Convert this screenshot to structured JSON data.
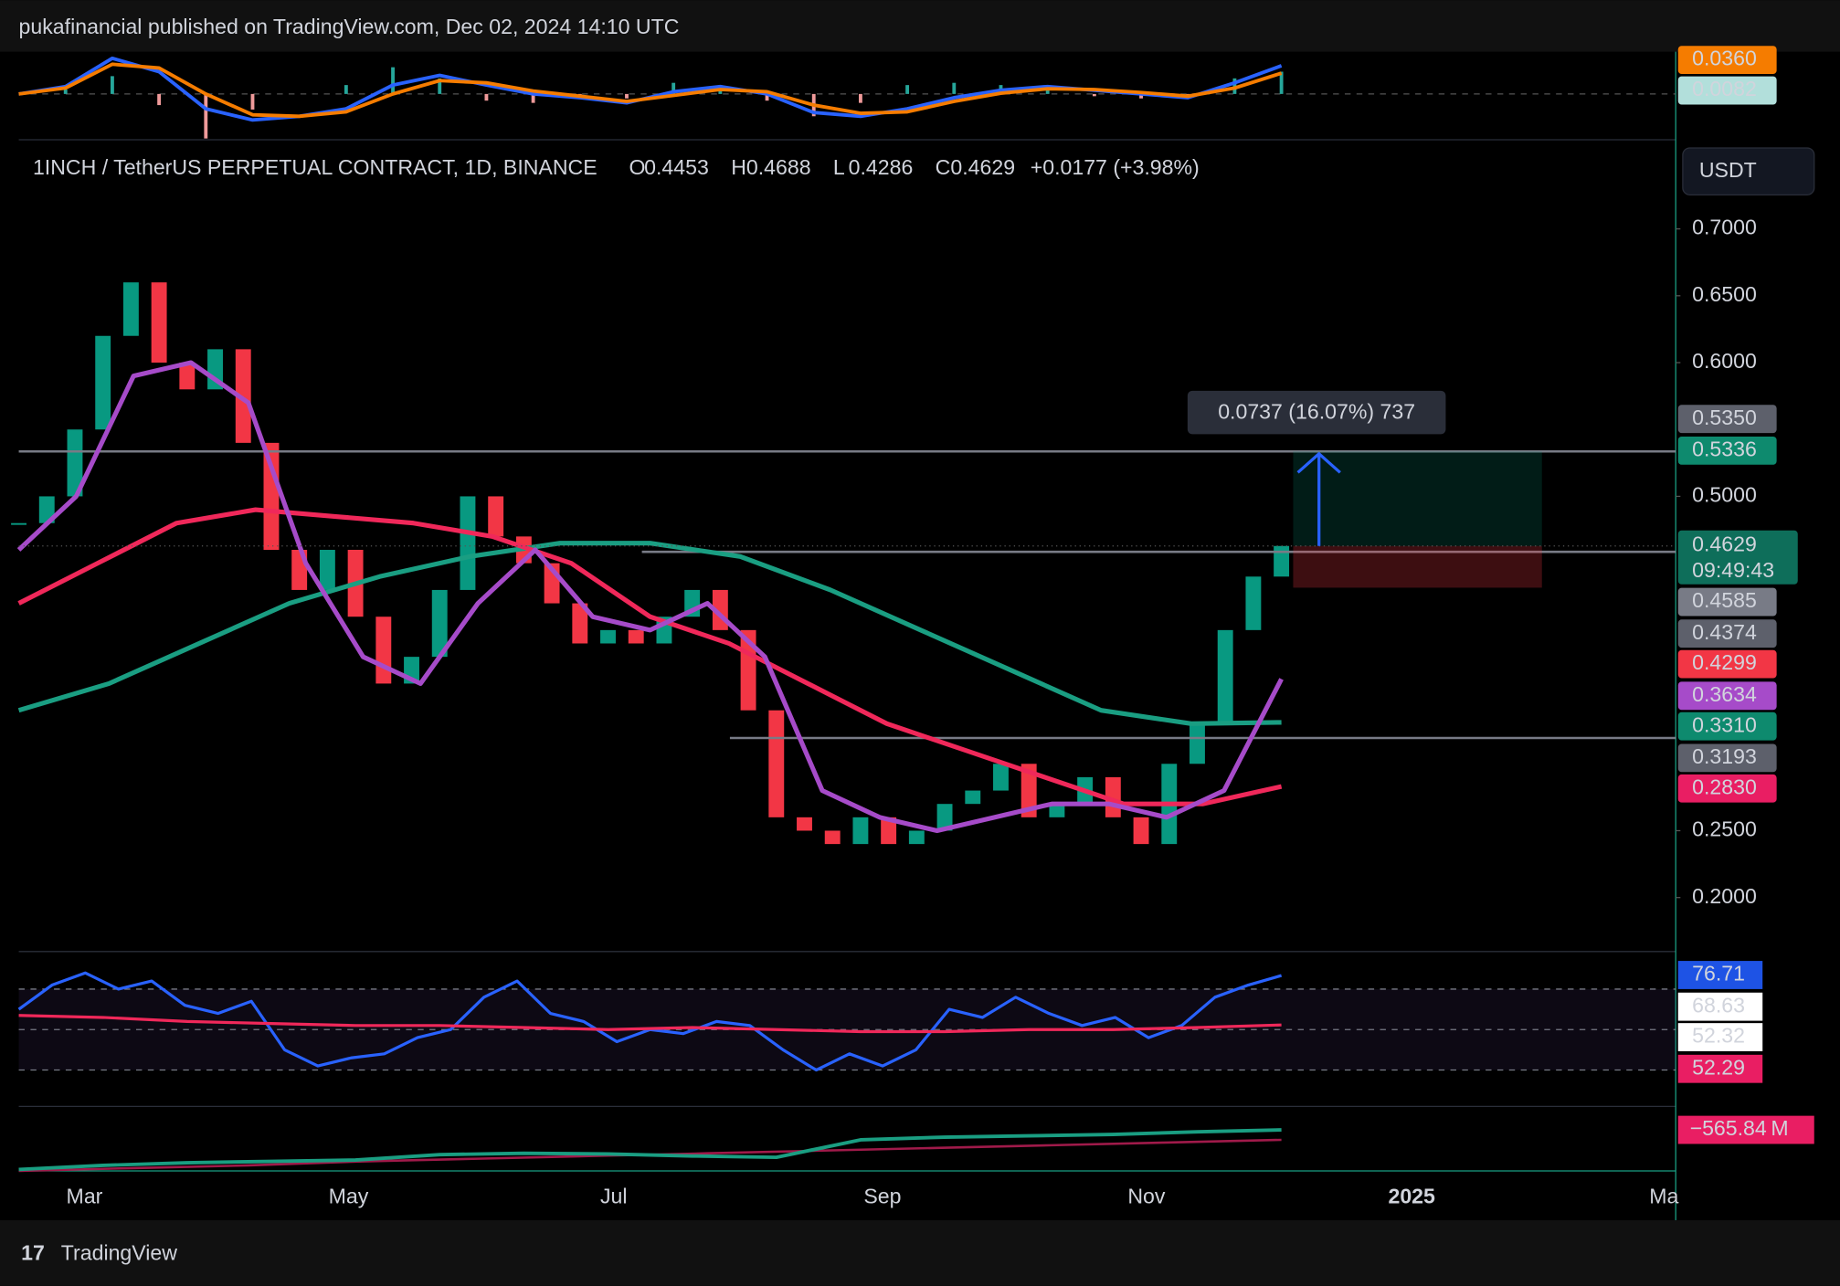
{
  "header": {
    "publisher": "pukafinancial published on TradingView.com, Dec 02, 2024 14:10 UTC"
  },
  "legend": {
    "symbol": "1INCH / TetherUS PERPETUAL CONTRACT, 1D, BINANCE",
    "open_key": "O",
    "open": "0.4453",
    "high_key": "H",
    "high": "0.4688",
    "low_key": "L",
    "low": "0.4286",
    "close_key": "C",
    "close": "0.4629",
    "change": "+0.0177 (+3.98%)"
  },
  "currency": "USDT",
  "price_pane": {
    "ylim": [
      0.1605,
      0.7658
    ],
    "yticks": [
      {
        "value": 0.7,
        "label": "0.7000"
      },
      {
        "value": 0.65,
        "label": "0.6500"
      },
      {
        "value": 0.6,
        "label": "0.6000"
      },
      {
        "value": 0.5,
        "label": "0.5000"
      },
      {
        "value": 0.25,
        "label": "0.2500"
      },
      {
        "value": 0.2,
        "label": "0.2000"
      }
    ],
    "close": [
      0.48,
      0.5,
      0.55,
      0.62,
      0.66,
      0.6,
      0.58,
      0.61,
      0.54,
      0.46,
      0.43,
      0.46,
      0.41,
      0.36,
      0.38,
      0.43,
      0.5,
      0.47,
      0.45,
      0.42,
      0.39,
      0.4,
      0.39,
      0.41,
      0.43,
      0.4,
      0.34,
      0.26,
      0.25,
      0.24,
      0.26,
      0.24,
      0.25,
      0.27,
      0.28,
      0.3,
      0.26,
      0.27,
      0.29,
      0.26,
      0.24,
      0.3,
      0.33,
      0.4,
      0.44,
      0.4629
    ],
    "ma_short": [
      0.46,
      0.5,
      0.59,
      0.6,
      0.57,
      0.45,
      0.38,
      0.36,
      0.42,
      0.46,
      0.41,
      0.4,
      0.42,
      0.38,
      0.28,
      0.26,
      0.25,
      0.26,
      0.27,
      0.27,
      0.26,
      0.28,
      0.3634
    ],
    "ma_mid": [
      0.42,
      0.45,
      0.48,
      0.49,
      0.485,
      0.48,
      0.47,
      0.45,
      0.41,
      0.39,
      0.36,
      0.33,
      0.31,
      0.29,
      0.27,
      0.27,
      0.283
    ],
    "ma_long": [
      0.34,
      0.36,
      0.39,
      0.42,
      0.44,
      0.455,
      0.465,
      0.465,
      0.455,
      0.43,
      0.4,
      0.37,
      0.34,
      0.33,
      0.331
    ],
    "levels": [
      0.5336,
      0.4585,
      0.3193
    ],
    "position": {
      "target": 0.5336,
      "entry": 0.4629,
      "stop": 0.4317,
      "label": "0.0737 (16.07%) 737"
    },
    "badges": [
      {
        "label": "0.5350",
        "bg": "#5d606b",
        "fg": "#ffffff"
      },
      {
        "label": "0.5336",
        "bg": "#0e8a6e",
        "fg": "#ffffff"
      },
      {
        "label": "0.4629",
        "bg": "#0e6e5a",
        "fg": "#ffffff"
      },
      {
        "label": "0.4585",
        "bg": "#787b86",
        "fg": "#ffffff"
      },
      {
        "label": "0.4374",
        "bg": "#5d606b",
        "fg": "#ffffff"
      },
      {
        "label": "0.4299",
        "bg": "#f23645",
        "fg": "#ffffff"
      },
      {
        "label": "0.3634",
        "bg": "#a64bc9",
        "fg": "#ffffff"
      },
      {
        "label": "0.3310",
        "bg": "#0e8a6e",
        "fg": "#ffffff"
      },
      {
        "label": "0.3193",
        "bg": "#5d606b",
        "fg": "#ffffff"
      },
      {
        "label": "0.2830",
        "bg": "#e91e63",
        "fg": "#ffffff"
      }
    ],
    "countdown": "09:49:43"
  },
  "time_axis": [
    "Mar",
    "May",
    "Jul",
    "Sep",
    "Nov",
    "2025",
    "Ma"
  ],
  "macd": {
    "ylim": [
      -0.06,
      0.06
    ],
    "macd": [
      0,
      0.01,
      0.048,
      0.03,
      -0.02,
      -0.035,
      -0.03,
      -0.02,
      0.012,
      0.025,
      0.012,
      0,
      -0.005,
      -0.012,
      0.003,
      0.01,
      0,
      -0.025,
      -0.03,
      -0.02,
      -0.005,
      0.005,
      0.01,
      0.005,
      0,
      -0.005,
      0.015,
      0.038
    ],
    "signal": [
      0,
      0.008,
      0.04,
      0.035,
      0,
      -0.028,
      -0.03,
      -0.024,
      0,
      0.018,
      0.015,
      0.004,
      -0.003,
      -0.01,
      -0.002,
      0.006,
      0.003,
      -0.015,
      -0.026,
      -0.024,
      -0.01,
      0.001,
      0.007,
      0.006,
      0.002,
      -0.003,
      0.008,
      0.028
    ],
    "badges": [
      {
        "label": "0.0360",
        "bg": "#f57c00",
        "fg": "#ffffff"
      },
      {
        "label": "0.0082",
        "bg": "#b2dfdb",
        "fg": "#131722"
      }
    ]
  },
  "rsi": {
    "ylim": [
      12.6,
      88
    ],
    "levels": [
      70,
      50,
      30
    ],
    "rsi": [
      60,
      72,
      78,
      70,
      74,
      62,
      58,
      64,
      40,
      32,
      36,
      38,
      46,
      50,
      66,
      74,
      58,
      54,
      44,
      50,
      48,
      54,
      52,
      40,
      30,
      38,
      32,
      40,
      60,
      56,
      66,
      58,
      52,
      56,
      46,
      52,
      66,
      72,
      76.71
    ],
    "ma": [
      57,
      56,
      54,
      53,
      52,
      52,
      51,
      50,
      51,
      50,
      49,
      49,
      50,
      50,
      51,
      52.29
    ],
    "badges": [
      {
        "label": "76.71",
        "bg": "#1e53e5",
        "fg": "#ffffff"
      },
      {
        "label": "68.63",
        "bg": "#ffffff",
        "fg": "#131722"
      },
      {
        "label": "52.32",
        "bg": "#ffffff",
        "fg": "#131722"
      },
      {
        "label": "52.29",
        "bg": "#e91e63",
        "fg": "#ffffff"
      }
    ]
  },
  "cvd": {
    "ylim": [
      -871,
      -400
    ],
    "line": [
      -860,
      -830,
      -810,
      -800,
      -790,
      -750,
      -740,
      -745,
      -760,
      -770,
      -640,
      -620,
      -610,
      -600,
      -580,
      -566
    ],
    "ma": [
      -871,
      -850,
      -830,
      -800,
      -780,
      -760,
      -740,
      -720,
      -700,
      -680,
      -660,
      -640
    ],
    "badge": "−565.84 M"
  },
  "footer": "TradingView"
}
